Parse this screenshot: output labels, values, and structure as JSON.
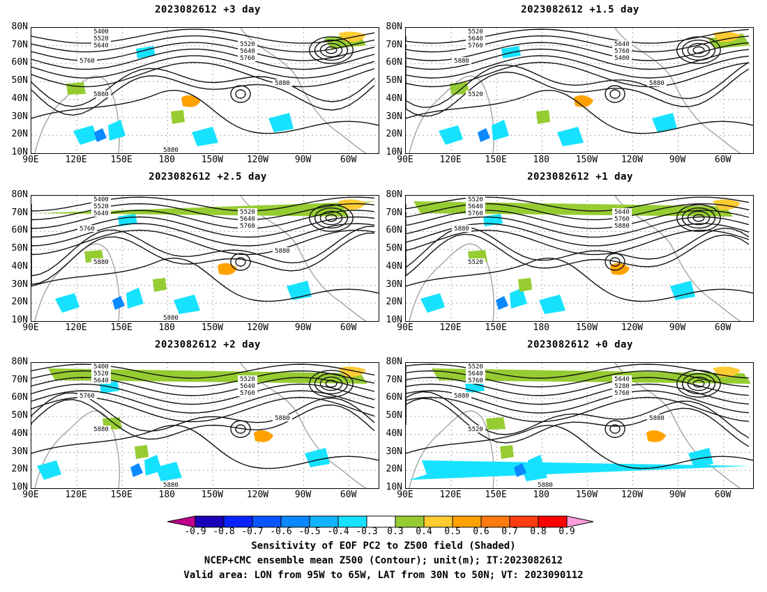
{
  "panels": [
    {
      "title": "2023082612 +3 day"
    },
    {
      "title": "2023082612 +1.5 day"
    },
    {
      "title": "2023082612 +2.5 day"
    },
    {
      "title": "2023082612 +1 day"
    },
    {
      "title": "2023082612 +2 day"
    },
    {
      "title": "2023082612 +0 day"
    }
  ],
  "axes": {
    "lat_labels": [
      "80N",
      "70N",
      "60N",
      "50N",
      "40N",
      "30N",
      "20N",
      "10N"
    ],
    "lon_labels": [
      "90E",
      "120E",
      "150E",
      "180",
      "150W",
      "120W",
      "90W",
      "60W"
    ]
  },
  "contour_labels": {
    "p0": [
      "5400",
      "5520",
      "5640",
      "5760",
      "5880",
      "5520",
      "5640",
      "5760",
      "5880",
      "5880"
    ],
    "p1": [
      "5520",
      "5640",
      "5760",
      "5880",
      "5520",
      "5640",
      "5760",
      "5400",
      "5880"
    ],
    "p2": [
      "5400",
      "5520",
      "5640",
      "5760",
      "5880",
      "5520",
      "5640",
      "5760",
      "5880",
      "5880"
    ],
    "p3": [
      "5520",
      "5640",
      "5760",
      "5880",
      "5520",
      "5640",
      "5760",
      "5880"
    ],
    "p4": [
      "5400",
      "5520",
      "5640",
      "5760",
      "5880",
      "5520",
      "5640",
      "5760",
      "5880",
      "5880"
    ],
    "p5": [
      "5520",
      "5640",
      "5760",
      "5880",
      "5520",
      "5640",
      "5280",
      "5760",
      "5880",
      "5880"
    ]
  },
  "colorbar": {
    "ticks": [
      "-0.9",
      "-0.8",
      "-0.7",
      "-0.6",
      "-0.5",
      "-0.4",
      "-0.3",
      "0.3",
      "0.4",
      "0.5",
      "0.6",
      "0.7",
      "0.8",
      "0.9"
    ],
    "colors": [
      "#1a00b8",
      "#0a22ff",
      "#0a55ff",
      "#0a88ff",
      "#10b4ff",
      "#16e2ff",
      "#ffffff",
      "#96cc32",
      "#ffcc33",
      "#ffa200",
      "#ff7a10",
      "#ff3d10",
      "#ff0000"
    ],
    "low_end_color": "#c0008c",
    "high_end_color": "#ff9ed8"
  },
  "caption": {
    "line1": "Sensitivity of EOF PC2 to Z500 field (Shaded)",
    "line2": "NCEP+CMC ensemble mean Z500 (Contour); unit(m); IT:2023082612",
    "line3": "Valid area: LON from 95W to 65W, LAT from 30N to 50N; VT: 2023090112"
  }
}
